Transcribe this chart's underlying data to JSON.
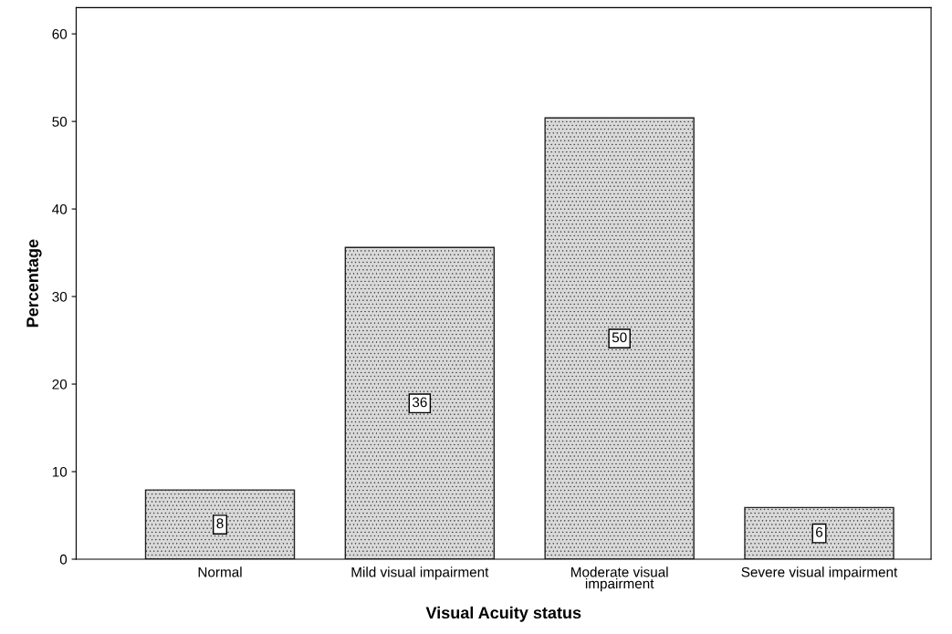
{
  "chart_data": {
    "type": "bar",
    "xlabel": "Visual Acuity status",
    "ylabel": "Percentage",
    "categories": [
      "Normal",
      "Mild visual impairment",
      "Moderate visual\nimpairment",
      "Severe visual impairment"
    ],
    "values": [
      7.9,
      35.6,
      50.4,
      5.9
    ],
    "value_labels": [
      "8",
      "36",
      "50",
      "6"
    ],
    "color": "#d9d9d9",
    "ylim": [
      0,
      63
    ],
    "yticks": [
      0,
      10,
      20,
      30,
      40,
      50,
      60
    ],
    "grid": false,
    "legend": false
  }
}
